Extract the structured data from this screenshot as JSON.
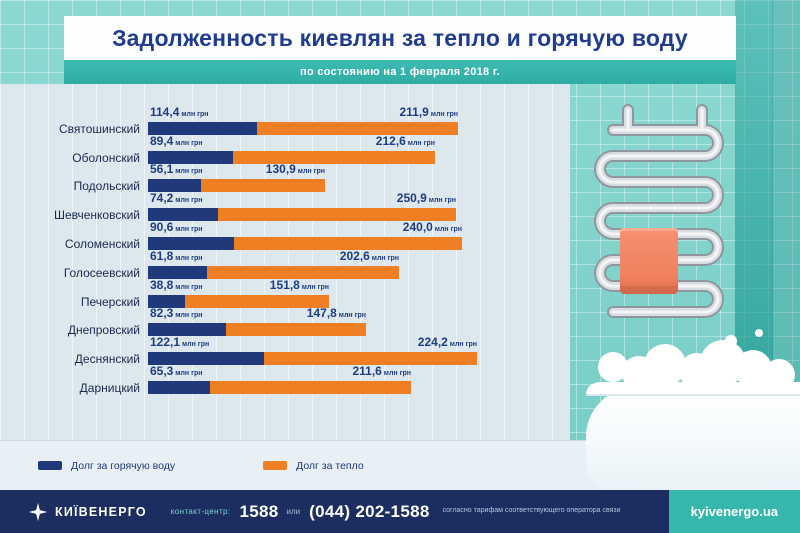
{
  "title": "Задолженность киевлян за тепло и горячую воду",
  "subtitle": "по состоянию на 1 февраля 2018 г.",
  "chart_data": {
    "type": "bar",
    "orientation": "horizontal",
    "stacked": true,
    "unit": "млн грн",
    "categories": [
      "Святошинский",
      "Оболонский",
      "Подольский",
      "Шевченковский",
      "Соломенский",
      "Голосеевский",
      "Печерский",
      "Днепровский",
      "Деснянский",
      "Дарницкий"
    ],
    "series": [
      {
        "name": "Долг за горячую воду",
        "color": "#20397a",
        "values": [
          114.4,
          89.4,
          56.1,
          74.2,
          90.6,
          61.8,
          38.8,
          82.3,
          122.1,
          65.3
        ],
        "labels": [
          "114,4",
          "89,4",
          "56,1",
          "74,2",
          "90,6",
          "61,8",
          "38,8",
          "82,3",
          "122,1",
          "65,3"
        ]
      },
      {
        "name": "Долг за тепло",
        "color": "#f07f24",
        "values": [
          211.9,
          212.6,
          130.9,
          250.9,
          240.0,
          202.6,
          151.8,
          147.8,
          224.2,
          211.6
        ],
        "labels": [
          "211,9",
          "212,6",
          "130,9",
          "250,9",
          "240,0",
          "202,6",
          "151,8",
          "147,8",
          "224,2",
          "211,6"
        ]
      }
    ],
    "totals": [
      326.3,
      302.0,
      187.0,
      325.1,
      330.6,
      264.4,
      190.6,
      230.1,
      346.3,
      276.9
    ],
    "x_max_total": 346.3,
    "legend_position": "bottom",
    "grid": false
  },
  "legend": {
    "items": [
      {
        "label": "Долг за горячую воду",
        "color": "#20397a"
      },
      {
        "label": "Долг за тепло",
        "color": "#f07f24"
      }
    ]
  },
  "footer": {
    "brand": "КИЇВЕНЕРГО",
    "contact_label": "контакт-центр:",
    "phone_short": "1588",
    "or_text": "или",
    "phone_full": "(044) 202-1588",
    "note": "согласно тарифам соответствующего оператора связи",
    "website": "kyivenergo.ua"
  },
  "colors": {
    "hot_water": "#20397a",
    "heat": "#f07f24",
    "accent_teal": "#35b7ae",
    "footer_navy": "#1c2e5f",
    "title_navy": "#1f3d8c",
    "panel": "#dde8ee",
    "tiles": "#82d3cc"
  }
}
